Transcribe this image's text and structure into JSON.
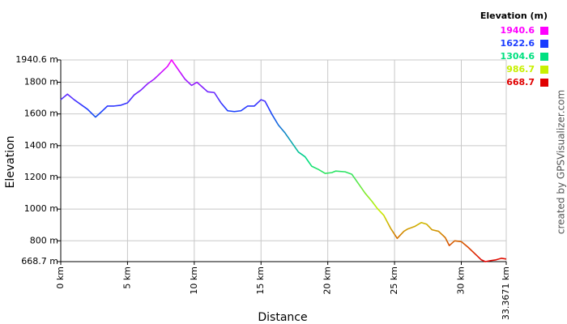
{
  "chart_data": {
    "type": "line",
    "x_label": "Distance",
    "y_label": "Elevation",
    "legend_title": "Elevation (m)",
    "color_scale": [
      {
        "value": 1940.6,
        "color": "#ff00ff"
      },
      {
        "value": 1622.6,
        "color": "#1a3cff"
      },
      {
        "value": 1304.6,
        "color": "#00e080"
      },
      {
        "value": 986.7,
        "color": "#c8f000"
      },
      {
        "value": 668.7,
        "color": "#e00000"
      }
    ],
    "credit": "created by GPSVisualizer.com",
    "x": [
      0,
      0.5,
      1,
      1.5,
      2,
      2.6,
      3,
      3.5,
      4,
      4.5,
      5,
      5.5,
      6,
      6.5,
      7,
      7.5,
      8,
      8.3,
      8.8,
      9.3,
      9.8,
      10.2,
      10.6,
      11,
      11.5,
      12,
      12.5,
      13,
      13.5,
      14,
      14.5,
      15,
      15.3,
      15.8,
      16.3,
      16.8,
      17.3,
      17.8,
      18.3,
      18.8,
      19.3,
      19.8,
      20.3,
      20.6,
      21.3,
      21.8,
      22.3,
      22.8,
      23.3,
      23.7,
      24.2,
      24.7,
      25.2,
      25.7,
      26,
      26.5,
      27,
      27.4,
      27.8,
      28.3,
      28.8,
      29.1,
      29.5,
      30,
      30.5,
      31,
      31.5,
      31.8,
      32.2,
      32.6,
      33,
      33.3671
    ],
    "values": [
      1690,
      1725,
      1690,
      1660,
      1630,
      1580,
      1610,
      1650,
      1650,
      1655,
      1670,
      1720,
      1750,
      1790,
      1820,
      1860,
      1900,
      1940.6,
      1880,
      1820,
      1780,
      1800,
      1770,
      1740,
      1735,
      1670,
      1620,
      1615,
      1620,
      1650,
      1650,
      1690,
      1680,
      1600,
      1530,
      1480,
      1420,
      1360,
      1330,
      1270,
      1250,
      1225,
      1230,
      1240,
      1235,
      1220,
      1160,
      1100,
      1050,
      1005,
      960,
      880,
      815,
      860,
      875,
      890,
      915,
      905,
      870,
      860,
      820,
      770,
      800,
      795,
      760,
      720,
      680,
      668.7,
      675,
      680,
      690,
      685
    ],
    "xlim": [
      0,
      33.3671
    ],
    "ylim": [
      668.7,
      1940.6
    ],
    "xticks": [
      {
        "value": 0,
        "label": "0 km"
      },
      {
        "value": 5,
        "label": "5 km"
      },
      {
        "value": 10,
        "label": "10 km"
      },
      {
        "value": 15,
        "label": "15 km"
      },
      {
        "value": 20,
        "label": "20 km"
      },
      {
        "value": 25,
        "label": "25 km"
      },
      {
        "value": 30,
        "label": "30 km"
      },
      {
        "value": 33.3671,
        "label": "33.3671 km"
      }
    ],
    "yticks": [
      {
        "value": 668.7,
        "label": "668.7 m"
      },
      {
        "value": 800,
        "label": "800 m"
      },
      {
        "value": 1000,
        "label": "1000 m"
      },
      {
        "value": 1200,
        "label": "1200 m"
      },
      {
        "value": 1400,
        "label": "1400 m"
      },
      {
        "value": 1600,
        "label": "1600 m"
      },
      {
        "value": 1800,
        "label": "1800 m"
      },
      {
        "value": 1940.6,
        "label": "1940.6 m"
      }
    ],
    "grid": true
  }
}
